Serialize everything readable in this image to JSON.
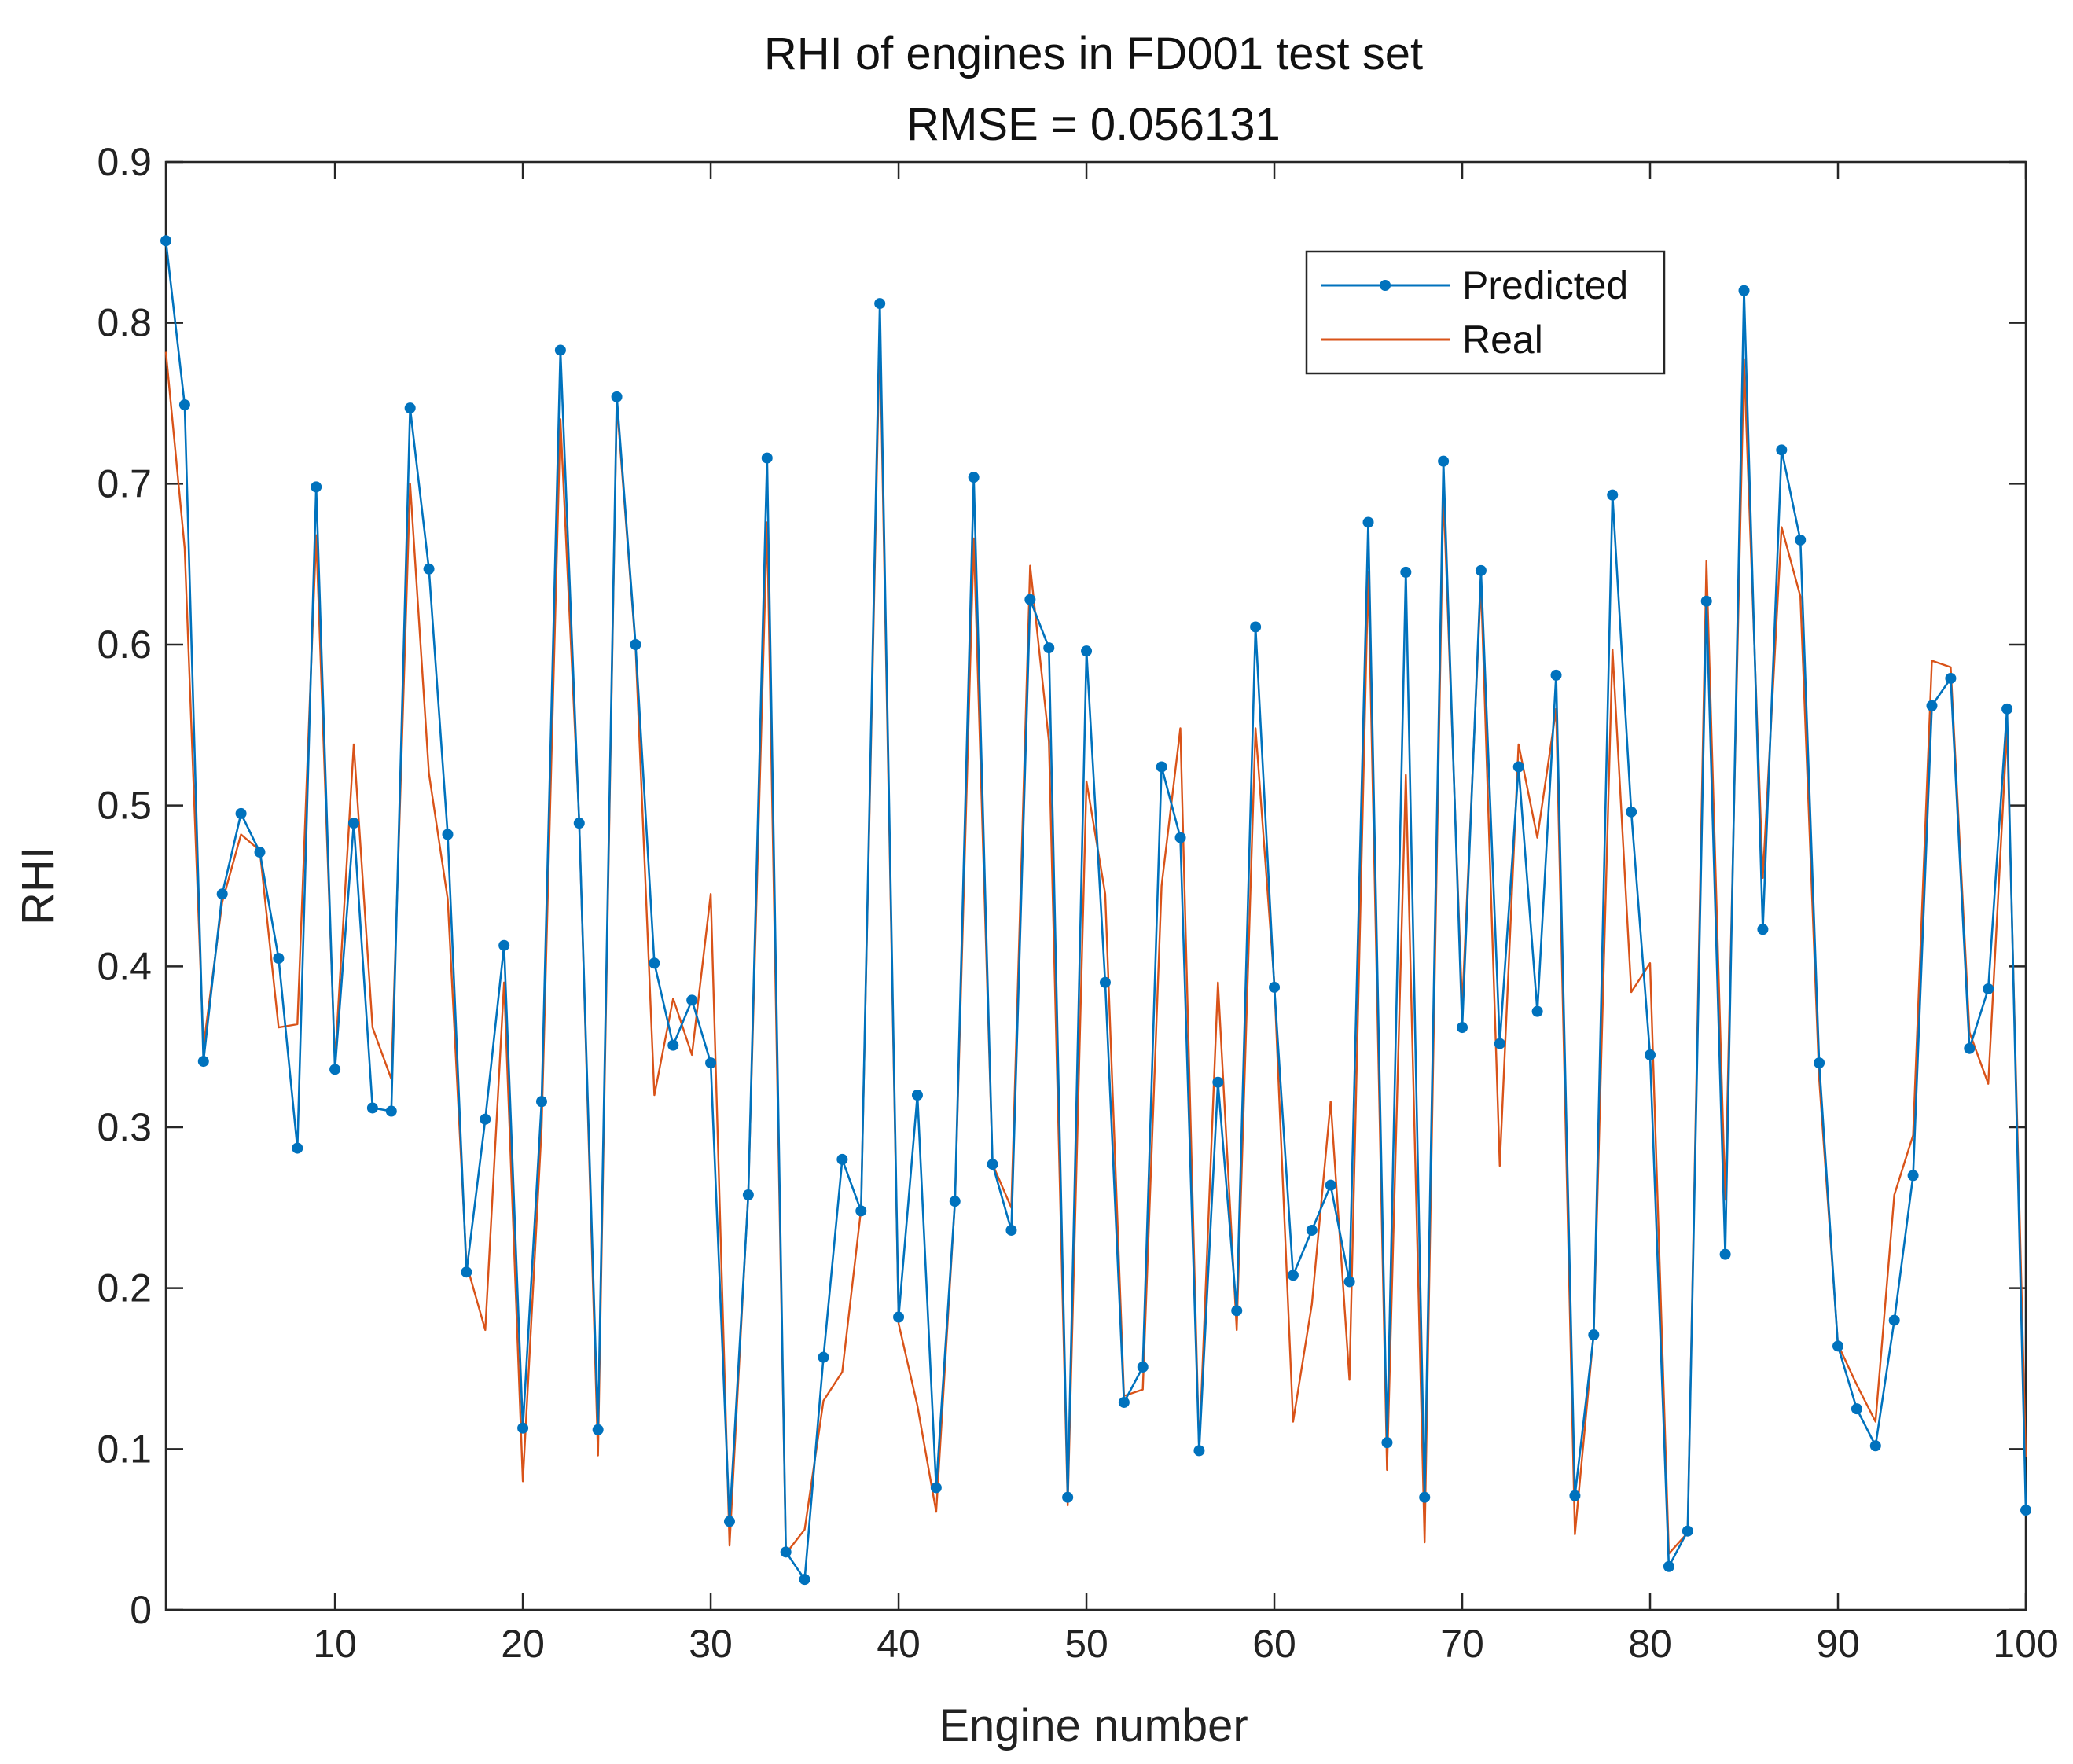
{
  "chart_data": {
    "type": "line",
    "title": "RHI of engines in FD001 test set",
    "subtitle": "RMSE = 0.056131",
    "xlabel": "Engine number",
    "ylabel": "RHI",
    "xlim": [
      1,
      100
    ],
    "ylim": [
      0,
      0.9
    ],
    "xticks": [
      10,
      20,
      30,
      40,
      50,
      60,
      70,
      80,
      90,
      100
    ],
    "xtick_labels": [
      "10",
      "20",
      "30",
      "40",
      "50",
      "60",
      "70",
      "80",
      "90",
      "100"
    ],
    "yticks": [
      0,
      0.1,
      0.2,
      0.3,
      0.4,
      0.5,
      0.6,
      0.7,
      0.8,
      0.9
    ],
    "ytick_labels": [
      "0",
      "0.1",
      "0.2",
      "0.3",
      "0.4",
      "0.5",
      "0.6",
      "0.7",
      "0.8",
      "0.9"
    ],
    "grid": false,
    "legend_position": "top-right",
    "x": [
      1,
      2,
      3,
      4,
      5,
      6,
      7,
      8,
      9,
      10,
      11,
      12,
      13,
      14,
      15,
      16,
      17,
      18,
      19,
      20,
      21,
      22,
      23,
      24,
      25,
      26,
      27,
      28,
      29,
      30,
      31,
      32,
      33,
      34,
      35,
      36,
      37,
      38,
      39,
      40,
      41,
      42,
      43,
      44,
      45,
      46,
      47,
      48,
      49,
      50,
      51,
      52,
      53,
      54,
      55,
      56,
      57,
      58,
      59,
      60,
      61,
      62,
      63,
      64,
      65,
      66,
      67,
      68,
      69,
      70,
      71,
      72,
      73,
      74,
      75,
      76,
      77,
      78,
      79,
      80,
      81,
      82,
      83,
      84,
      85,
      86,
      87,
      88,
      89,
      90,
      91,
      92,
      93,
      94,
      95,
      96,
      97,
      98,
      99,
      100
    ],
    "series": [
      {
        "name": "Predicted",
        "color": "#0072BD",
        "marker": "dot",
        "values": [
          0.851,
          0.749,
          0.341,
          0.445,
          0.495,
          0.471,
          0.405,
          0.287,
          0.698,
          0.336,
          0.489,
          0.312,
          0.31,
          0.747,
          0.647,
          0.482,
          0.21,
          0.305,
          0.413,
          0.113,
          0.316,
          0.783,
          0.489,
          0.112,
          0.754,
          0.6,
          0.402,
          0.351,
          0.379,
          0.34,
          0.055,
          0.258,
          0.716,
          0.036,
          0.019,
          0.157,
          0.28,
          0.248,
          0.812,
          0.182,
          0.32,
          0.076,
          0.254,
          0.704,
          0.277,
          0.236,
          0.628,
          0.598,
          0.07,
          0.596,
          0.39,
          0.129,
          0.151,
          0.524,
          0.48,
          0.099,
          0.328,
          0.186,
          0.611,
          0.387,
          0.208,
          0.236,
          0.264,
          0.204,
          0.676,
          0.104,
          0.645,
          0.07,
          0.714,
          0.362,
          0.646,
          0.352,
          0.524,
          0.372,
          0.581,
          0.071,
          0.171,
          0.693,
          0.496,
          0.345,
          0.027,
          0.049,
          0.627,
          0.221,
          0.82,
          0.423,
          0.721,
          0.665,
          0.34,
          0.164,
          0.125,
          0.102,
          0.18,
          0.27,
          0.562,
          0.579,
          0.349,
          0.386,
          0.56,
          0.062
        ]
      },
      {
        "name": "Real",
        "color": "#D95319",
        "marker": "none",
        "values": [
          0.782,
          0.66,
          0.35,
          0.44,
          0.482,
          0.472,
          0.362,
          0.364,
          0.668,
          0.34,
          0.538,
          0.362,
          0.33,
          0.7,
          0.52,
          0.442,
          0.215,
          0.174,
          0.39,
          0.08,
          0.3,
          0.74,
          0.49,
          0.096,
          0.75,
          0.598,
          0.32,
          0.38,
          0.345,
          0.445,
          0.04,
          0.26,
          0.676,
          0.035,
          0.05,
          0.13,
          0.148,
          0.249,
          0.795,
          0.178,
          0.127,
          0.061,
          0.254,
          0.666,
          0.277,
          0.25,
          0.649,
          0.54,
          0.065,
          0.515,
          0.445,
          0.133,
          0.137,
          0.45,
          0.548,
          0.099,
          0.39,
          0.174,
          0.548,
          0.39,
          0.117,
          0.19,
          0.316,
          0.143,
          0.645,
          0.087,
          0.519,
          0.042,
          0.696,
          0.375,
          0.638,
          0.276,
          0.538,
          0.48,
          0.56,
          0.047,
          0.172,
          0.597,
          0.384,
          0.402,
          0.035,
          0.048,
          0.652,
          0.255,
          0.777,
          0.455,
          0.673,
          0.63,
          0.33,
          0.165,
          0.14,
          0.117,
          0.258,
          0.295,
          0.59,
          0.586,
          0.359,
          0.327,
          0.548,
          0.095
        ]
      }
    ]
  }
}
